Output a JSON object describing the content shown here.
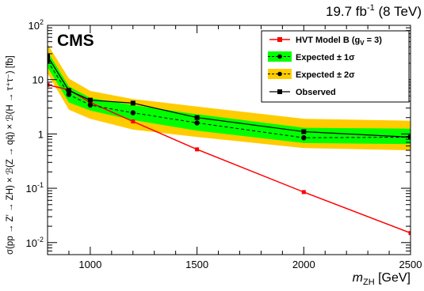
{
  "header": {
    "lumi_base": "19.7 fb",
    "lumi_exp": "-1",
    "lumi_energy": " (8 TeV)",
    "experiment": "CMS"
  },
  "axes": {
    "xlabel_main": "m",
    "xlabel_sub": "ZH",
    "xlabel_unit": " [GeV]",
    "ylabel": "σ(pp → Z′ → ZH) × ℬ(Z → qq̄) × ℬ(H → τ⁺τ⁻) [fb]"
  },
  "legend": {
    "hvt": "HVT Model B (g",
    "hvt_sub": "V",
    "hvt_end": " = 3)",
    "expected1": "Expected ± 1σ",
    "expected2": "Expected ± 2σ",
    "observed": "Observed"
  },
  "colors": {
    "band2": "#ffcc00",
    "band1": "#00ff00",
    "hvt": "#ff0000",
    "line": "#000000"
  },
  "chart_data": {
    "type": "line",
    "xlim": [
      800,
      2500
    ],
    "ylim": [
      0.006,
      100
    ],
    "ylog": true,
    "x_ticks": [
      1000,
      1500,
      2000,
      2500
    ],
    "y_ticks": [
      {
        "value": 0.01,
        "base": "10",
        "exp": "-2"
      },
      {
        "value": 0.1,
        "base": "10",
        "exp": "-1"
      },
      {
        "value": 1,
        "base": "1",
        "exp": ""
      },
      {
        "value": 10,
        "base": "10",
        "exp": ""
      },
      {
        "value": 100,
        "base": "10",
        "exp": "2"
      }
    ],
    "legend_position": "top-right",
    "series": [
      {
        "name": "HVT Model B (gV = 3)",
        "style": "red-line-squares",
        "x": [
          800,
          900,
          1000,
          1200,
          1500,
          2000,
          2500
        ],
        "y": [
          8.0,
          6.5,
          3.8,
          1.7,
          0.52,
          0.085,
          0.015
        ]
      },
      {
        "name": "Expected ± 2σ",
        "style": "yellow-band",
        "x": [
          800,
          900,
          1000,
          1200,
          1500,
          2000,
          2500
        ],
        "lower": [
          13,
          2.8,
          1.9,
          1.2,
          0.88,
          0.55,
          0.5
        ],
        "upper": [
          45,
          10.5,
          6.2,
          4.4,
          3.2,
          1.9,
          1.75
        ]
      },
      {
        "name": "Expected ± 1σ",
        "style": "green-band",
        "x": [
          800,
          900,
          1000,
          1200,
          1500,
          2000,
          2500
        ],
        "lower": [
          17,
          3.8,
          2.7,
          1.8,
          1.15,
          0.68,
          0.65
        ],
        "upper": [
          33,
          7.5,
          4.6,
          3.4,
          2.3,
          1.3,
          1.25
        ]
      },
      {
        "name": "Expected",
        "style": "dashed-dots",
        "x": [
          800,
          900,
          1000,
          1200,
          1500,
          2000,
          2500
        ],
        "y": [
          22,
          5.3,
          3.4,
          2.45,
          1.6,
          0.85,
          0.87
        ]
      },
      {
        "name": "Observed",
        "style": "solid-squares",
        "x": [
          800,
          900,
          1000,
          1200,
          1500,
          2000,
          2500
        ],
        "y": [
          27,
          6.3,
          4.2,
          3.7,
          2.0,
          1.1,
          0.87
        ]
      }
    ]
  }
}
